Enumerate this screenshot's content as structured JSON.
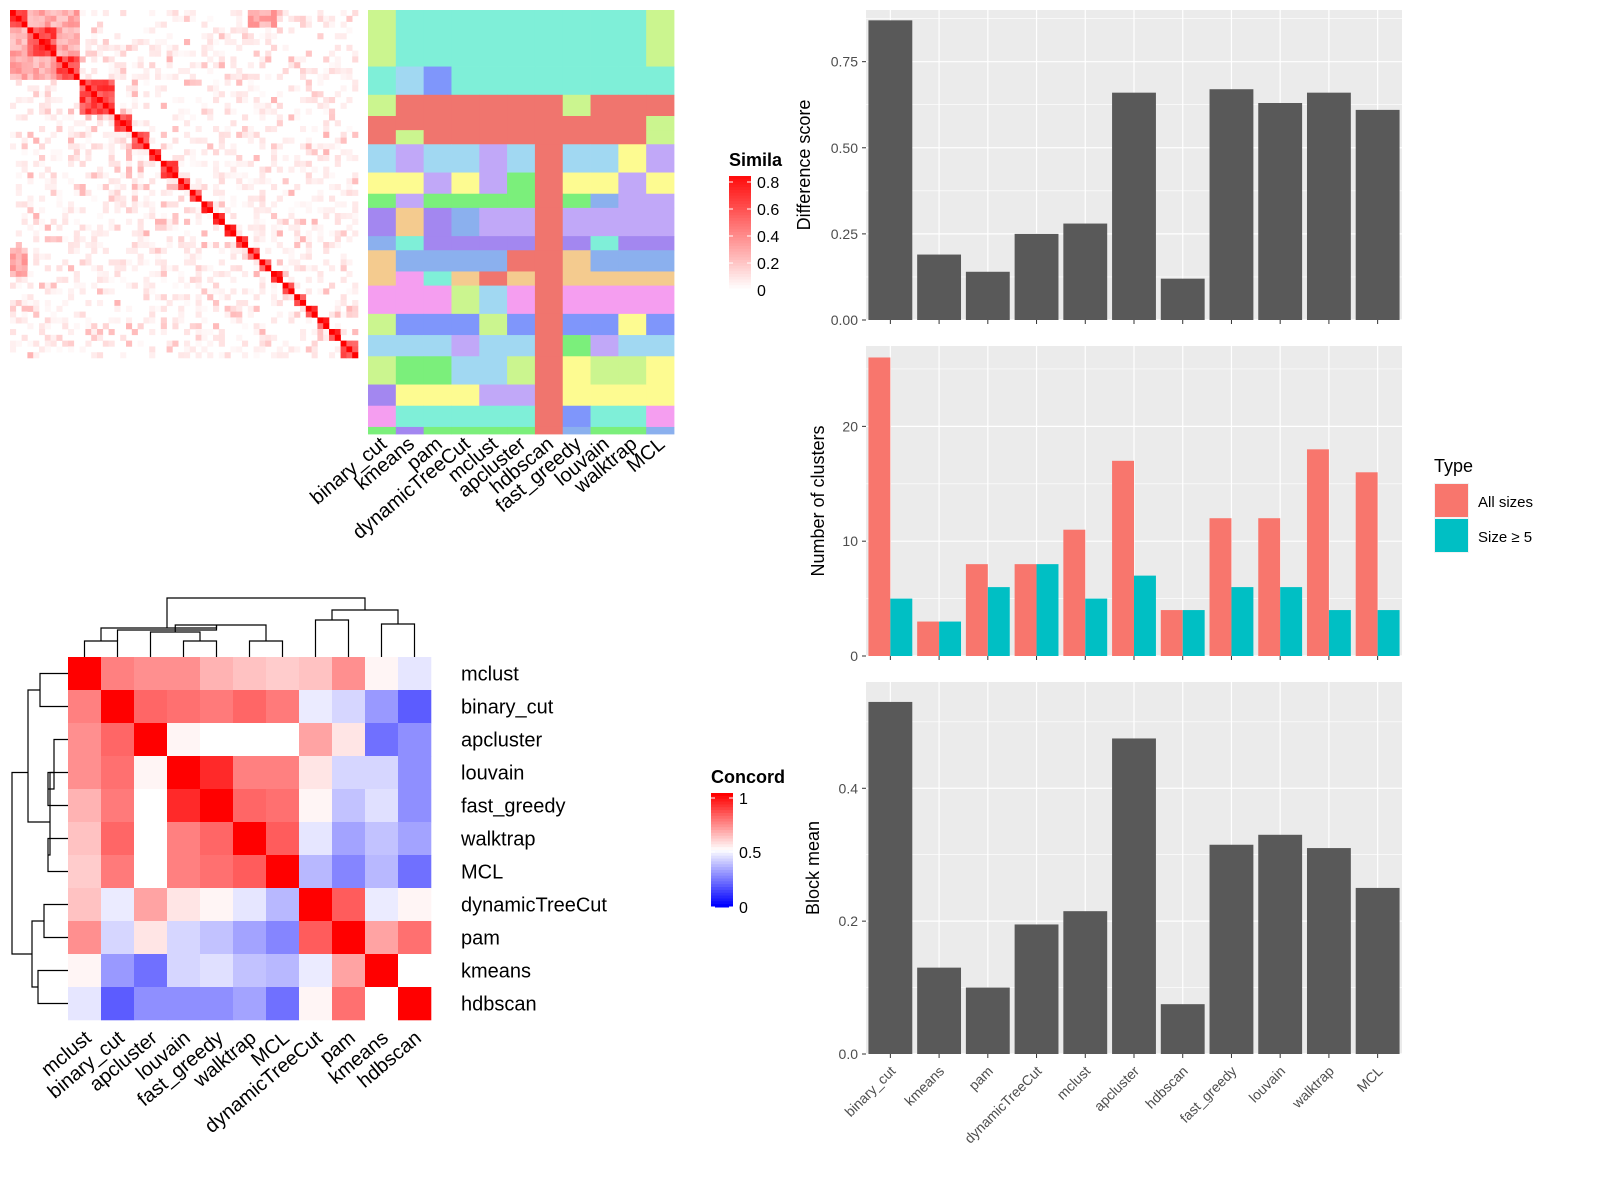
{
  "colors": {
    "panel_bg": "#ebebeb",
    "grid": "#ffffff",
    "bar": "#595959",
    "all_sizes": "#f8766d",
    "size5": "#00bfc4"
  },
  "similarity_heatmap": {
    "legend_title": "Simila",
    "legend_ticks": [
      "0.8",
      "0.6",
      "0.4",
      "0.2",
      "0"
    ],
    "methods": [
      "binary_cut",
      "kmeans",
      "pam",
      "dynamicTreeCut",
      "mclust",
      "apcluster",
      "hdbscan",
      "fast_greedy",
      "louvain",
      "walktrap",
      "MCL"
    ],
    "cluster_palette": [
      "#7fefd8",
      "#f0756e",
      "#f59ef0",
      "#7f96fb",
      "#cbf58f",
      "#a1d8f2",
      "#fdfb91",
      "#7bef7b",
      "#c1a8f8",
      "#a387f0",
      "#8bb0ee",
      "#f4cb8f"
    ]
  },
  "concordance_heatmap": {
    "legend_title": "Concord",
    "legend_ticks": [
      "1",
      "0.5",
      "0"
    ],
    "row_labels": [
      "mclust",
      "binary_cut",
      "apcluster",
      "louvain",
      "fast_greedy",
      "walktrap",
      "MCL",
      "dynamicTreeCut",
      "pam",
      "kmeans",
      "hdbscan"
    ],
    "col_labels": [
      "mclust",
      "binary_cut",
      "apcluster",
      "louvain",
      "fast_greedy",
      "walktrap",
      "MCL",
      "dynamicTreeCut",
      "pam",
      "kmeans",
      "hdbscan"
    ],
    "matrix": [
      [
        1.0,
        0.75,
        0.72,
        0.72,
        0.65,
        0.62,
        0.6,
        0.62,
        0.72,
        0.52,
        0.45
      ],
      [
        0.75,
        1.0,
        0.8,
        0.78,
        0.76,
        0.8,
        0.76,
        0.46,
        0.42,
        0.3,
        0.18
      ],
      [
        0.72,
        0.8,
        1.0,
        0.52,
        0.5,
        0.5,
        0.5,
        0.68,
        0.55,
        0.22,
        0.28
      ],
      [
        0.72,
        0.78,
        0.52,
        1.0,
        0.92,
        0.75,
        0.75,
        0.55,
        0.42,
        0.42,
        0.28
      ],
      [
        0.65,
        0.76,
        0.5,
        0.92,
        1.0,
        0.8,
        0.78,
        0.52,
        0.38,
        0.44,
        0.28
      ],
      [
        0.62,
        0.8,
        0.5,
        0.75,
        0.8,
        1.0,
        0.82,
        0.45,
        0.32,
        0.38,
        0.32
      ],
      [
        0.6,
        0.76,
        0.5,
        0.75,
        0.78,
        0.82,
        1.0,
        0.36,
        0.26,
        0.36,
        0.22
      ],
      [
        0.62,
        0.46,
        0.68,
        0.55,
        0.52,
        0.45,
        0.36,
        1.0,
        0.82,
        0.46,
        0.52
      ],
      [
        0.72,
        0.42,
        0.55,
        0.42,
        0.38,
        0.32,
        0.26,
        0.82,
        1.0,
        0.68,
        0.78
      ],
      [
        0.52,
        0.3,
        0.22,
        0.42,
        0.44,
        0.38,
        0.36,
        0.46,
        0.68,
        1.0,
        0.5
      ],
      [
        0.45,
        0.18,
        0.28,
        0.28,
        0.28,
        0.32,
        0.22,
        0.52,
        0.78,
        0.5,
        1.0
      ]
    ]
  },
  "chart_data": [
    {
      "type": "bar",
      "categories": [
        "binary_cut",
        "kmeans",
        "pam",
        "dynamicTreeCut",
        "mclust",
        "apcluster",
        "hdbscan",
        "fast_greedy",
        "louvain",
        "walktrap",
        "MCL"
      ],
      "values": [
        0.87,
        0.19,
        0.14,
        0.25,
        0.28,
        0.66,
        0.12,
        0.67,
        0.63,
        0.66,
        0.61
      ],
      "ylabel": "Difference score",
      "ylim": [
        0,
        0.9
      ],
      "yticks": [
        "0.00",
        "0.25",
        "0.50",
        "0.75"
      ],
      "grid": true
    },
    {
      "type": "bar",
      "categories": [
        "binary_cut",
        "kmeans",
        "pam",
        "dynamicTreeCut",
        "mclust",
        "apcluster",
        "hdbscan",
        "fast_greedy",
        "louvain",
        "walktrap",
        "MCL"
      ],
      "series": [
        {
          "name": "All sizes",
          "values": [
            26,
            3,
            8,
            8,
            11,
            17,
            4,
            12,
            12,
            18,
            16
          ]
        },
        {
          "name": "Size ≥ 5",
          "values": [
            5,
            3,
            6,
            8,
            5,
            7,
            4,
            6,
            6,
            4,
            4
          ]
        }
      ],
      "ylabel": "Number of clusters",
      "ylim": [
        0,
        27
      ],
      "yticks": [
        "0",
        "10",
        "20"
      ],
      "legend_title": "Type",
      "legend_position": "right",
      "grid": true
    },
    {
      "type": "bar",
      "categories": [
        "binary_cut",
        "kmeans",
        "pam",
        "dynamicTreeCut",
        "mclust",
        "apcluster",
        "hdbscan",
        "fast_greedy",
        "louvain",
        "walktrap",
        "MCL"
      ],
      "values": [
        0.53,
        0.13,
        0.1,
        0.195,
        0.215,
        0.475,
        0.075,
        0.315,
        0.33,
        0.31,
        0.25
      ],
      "ylabel": "Block mean",
      "ylim": [
        0,
        0.56
      ],
      "yticks": [
        "0.0",
        "0.2",
        "0.4"
      ],
      "grid": true
    }
  ]
}
